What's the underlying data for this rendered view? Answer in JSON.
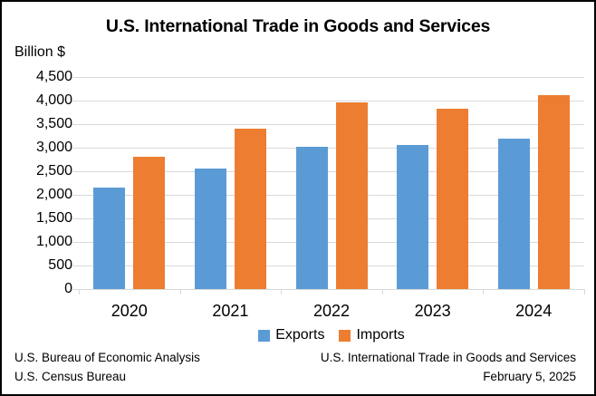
{
  "title": "U.S. International Trade in Goods and Services",
  "chart_data": {
    "type": "bar",
    "title": "U.S. International Trade in Goods and Services",
    "categories": [
      "2020",
      "2021",
      "2022",
      "2023",
      "2024"
    ],
    "series": [
      {
        "name": "Exports",
        "color": "#5B9BD5",
        "values": [
          2150,
          2550,
          3020,
          3050,
          3190
        ]
      },
      {
        "name": "Imports",
        "color": "#ED7D31",
        "values": [
          2810,
          3400,
          3970,
          3830,
          4110
        ]
      }
    ],
    "xlabel": "",
    "ylabel": "Billion $",
    "ylim": [
      0,
      4500
    ],
    "ytick_step": 500,
    "yticks": [
      "4,500",
      "4,000",
      "3,500",
      "3,000",
      "2,500",
      "2,000",
      "1,500",
      "1,000",
      "500",
      "0"
    ],
    "grid": true,
    "legend_position": "bottom",
    "grid_color": "#D9D9D9",
    "axis_color": "#D9D9D9"
  },
  "footer": {
    "source_line1": "U.S. Bureau of Economic Analysis",
    "source_line2": "U.S. Census Bureau",
    "release_title": "U.S. International Trade in Goods and Services",
    "release_date": "February 5, 2025"
  }
}
